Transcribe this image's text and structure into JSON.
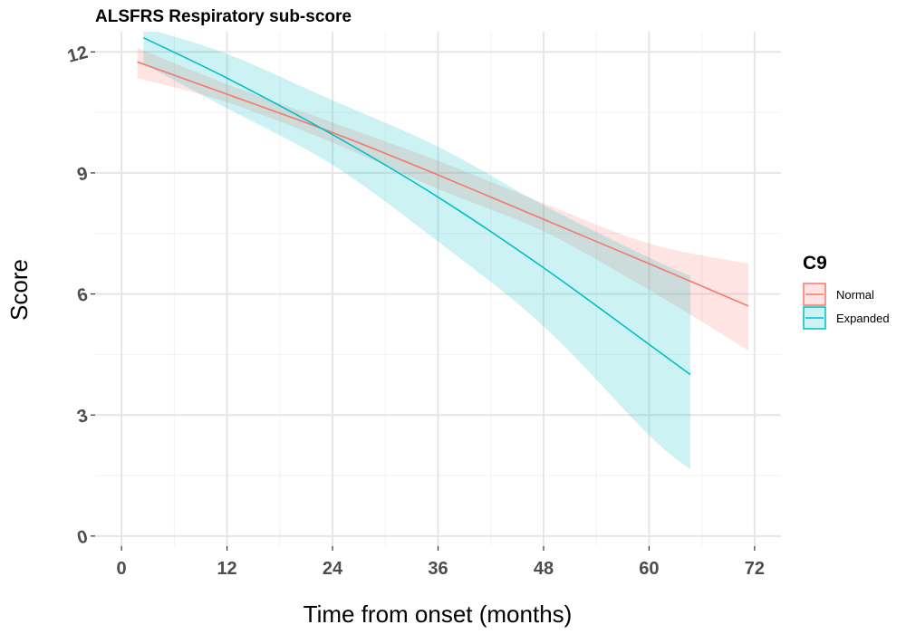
{
  "chart_data": {
    "type": "line",
    "title": "ALSFRS Respiratory sub-score",
    "xlabel": "Time from onset (months)",
    "ylabel": "Score",
    "xlim": [
      -3,
      75
    ],
    "ylim": [
      -0.25,
      12.5
    ],
    "xticks": [
      0,
      12,
      24,
      36,
      48,
      60,
      72
    ],
    "yticks": [
      0,
      3,
      6,
      9,
      12
    ],
    "grid": true,
    "legend": {
      "title": "C9",
      "position": "right"
    },
    "series": [
      {
        "name": "Normal",
        "color": "#F8766D",
        "x": [
          1.8,
          12,
          24,
          36,
          48,
          60,
          71.3
        ],
        "y": [
          11.75,
          10.95,
          10.0,
          8.95,
          7.85,
          6.75,
          5.7
        ],
        "lower": [
          11.35,
          10.75,
          9.75,
          8.6,
          7.55,
          6.1,
          4.6
        ],
        "upper": [
          12.1,
          11.2,
          10.25,
          9.3,
          8.25,
          7.25,
          6.75
        ]
      },
      {
        "name": "Expanded",
        "color": "#00BFC4",
        "x": [
          2.5,
          12,
          24,
          36,
          48,
          60,
          64.7
        ],
        "y": [
          12.35,
          11.35,
          9.95,
          8.4,
          6.65,
          4.75,
          4.0
        ],
        "lower": [
          11.7,
          10.6,
          9.2,
          7.3,
          5.2,
          2.5,
          1.65
        ],
        "upper": [
          12.6,
          11.95,
          10.8,
          9.65,
          8.2,
          6.9,
          6.45
        ]
      }
    ]
  }
}
